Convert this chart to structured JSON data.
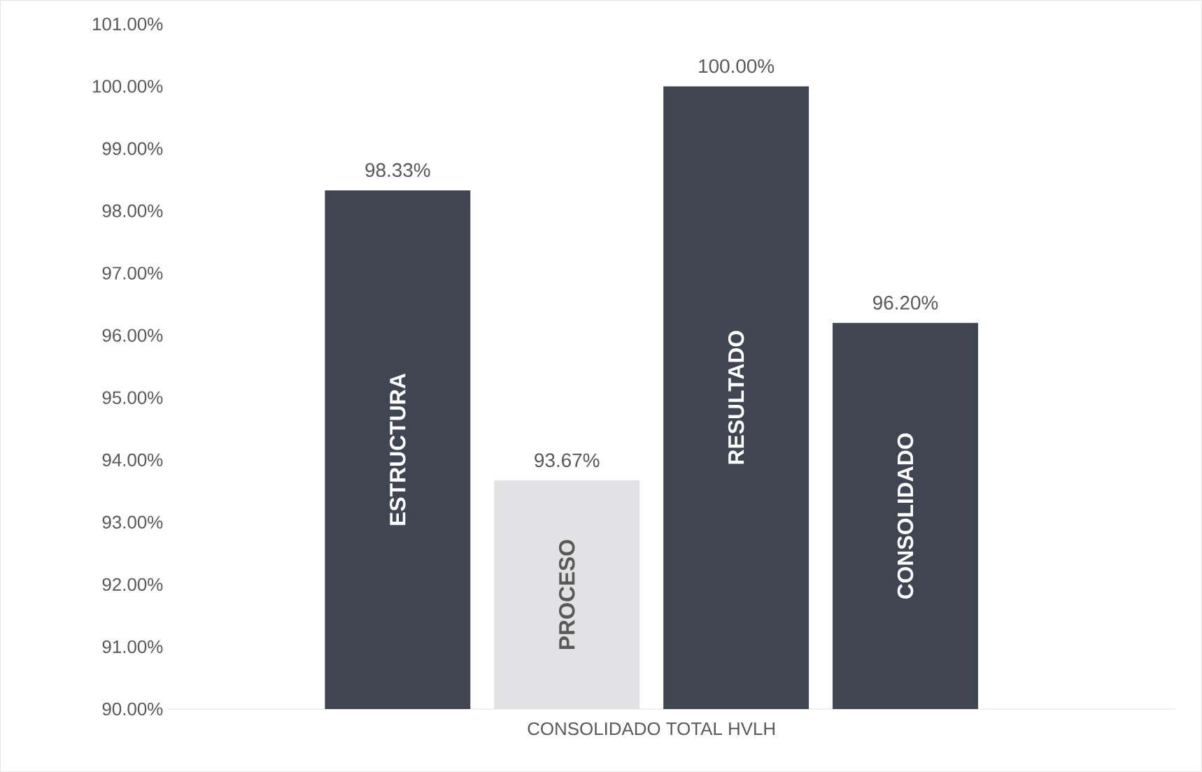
{
  "chart_data": {
    "type": "bar",
    "categories": [
      "CONSOLIDADO TOTAL HVLH"
    ],
    "series": [
      {
        "name": "ESTRUCTURA",
        "color": "#404552",
        "values": [
          98.33
        ],
        "value_labels": [
          "98.33%"
        ]
      },
      {
        "name": "PROCESO",
        "color": "#e2e2e4",
        "values": [
          93.67
        ],
        "value_labels": [
          "93.67%"
        ]
      },
      {
        "name": "RESULTADO",
        "color": "#404552",
        "values": [
          100.0
        ],
        "value_labels": [
          "100.00%"
        ]
      },
      {
        "name": "CONSOLIDADO",
        "color": "#404552",
        "values": [
          96.2
        ],
        "value_labels": [
          "96.20%"
        ]
      }
    ],
    "ylim": [
      90,
      101
    ],
    "yticks": [
      {
        "value": 90,
        "label": "90.00%"
      },
      {
        "value": 91,
        "label": "91.00%"
      },
      {
        "value": 92,
        "label": "92.00%"
      },
      {
        "value": 93,
        "label": "93.00%"
      },
      {
        "value": 94,
        "label": "94.00%"
      },
      {
        "value": 95,
        "label": "95.00%"
      },
      {
        "value": 96,
        "label": "96.00%"
      },
      {
        "value": 97,
        "label": "97.00%"
      },
      {
        "value": 98,
        "label": "98.00%"
      },
      {
        "value": 99,
        "label": "99.00%"
      },
      {
        "value": 100,
        "label": "100.00%"
      },
      {
        "value": 101,
        "label": "101.00%"
      }
    ]
  }
}
